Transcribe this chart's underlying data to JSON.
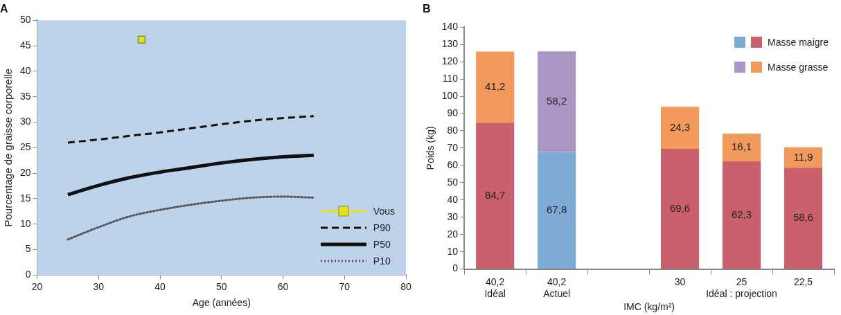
{
  "chart_data": [
    {
      "type": "line",
      "title": "A",
      "xlabel": "Age (années)",
      "ylabel": "Pourcentage de graisse corporelle",
      "xlim": [
        20,
        80
      ],
      "xticks": [
        20,
        30,
        40,
        50,
        60,
        70,
        80
      ],
      "ylim": [
        0,
        50
      ],
      "yticks": [
        0,
        5,
        10,
        15,
        20,
        25,
        30,
        35,
        40,
        45,
        50
      ],
      "grid": false,
      "legend": "bottom right",
      "series": [
        {
          "name": "Vous",
          "type": "scatter",
          "color": "#e2e21c",
          "marker": "square",
          "x": [
            37
          ],
          "values": [
            46.2
          ]
        },
        {
          "name": "P90",
          "type": "line",
          "color": "#111111",
          "marker": "none",
          "line_style": "dashed",
          "x": [
            25,
            30,
            35,
            40,
            45,
            50,
            55,
            60,
            65
          ],
          "values": [
            26,
            26.6,
            27.3,
            28,
            28.8,
            29.6,
            30.3,
            30.8,
            31.2
          ]
        },
        {
          "name": "P50",
          "type": "line",
          "color": "#111111",
          "marker": "none",
          "line_style": "solid",
          "x": [
            25,
            30,
            35,
            40,
            45,
            50,
            55,
            60,
            65
          ],
          "values": [
            15.8,
            17.6,
            19.1,
            20.2,
            21.1,
            22,
            22.7,
            23.2,
            23.5
          ]
        },
        {
          "name": "P10",
          "type": "line",
          "color": "#555555",
          "marker": "none",
          "line_style": "dotted",
          "x": [
            25,
            30,
            35,
            40,
            45,
            50,
            55,
            60,
            65
          ],
          "values": [
            7,
            9.4,
            11.5,
            12.8,
            13.8,
            14.6,
            15.2,
            15.4,
            15.2
          ]
        }
      ]
    },
    {
      "type": "bar",
      "title": "B",
      "xlabel": "IMC (kg/m²)",
      "ylabel": "Poids (kg)",
      "stacked": true,
      "categories": [
        "40,2\nIdéal",
        "40,2\nActuel",
        null,
        "30",
        "25\nIdéal : projection",
        "22,5"
      ],
      "ylim": [
        0,
        140
      ],
      "yticks": [
        0,
        10,
        20,
        30,
        40,
        50,
        60,
        70,
        80,
        90,
        100,
        110,
        120,
        130,
        140
      ],
      "grid": false,
      "legend": "top right",
      "series": [
        {
          "name": "Masse maigre",
          "colors": [
            "#c9606b",
            "#80aad6",
            null,
            "#c9606b",
            "#c9606b",
            "#c9606b"
          ],
          "values": [
            84.7,
            67.8,
            null,
            69.6,
            62.3,
            58.6
          ],
          "value_labels": [
            "84,7",
            "67,8",
            null,
            "69,6",
            "62,3",
            "58,6"
          ]
        },
        {
          "name": "Masse grasse",
          "colors": [
            "#f29a5c",
            "#ab97c6",
            null,
            "#f29a5c",
            "#f29a5c",
            "#f29a5c"
          ],
          "values": [
            41.2,
            58.2,
            null,
            24.3,
            16.1,
            11.9
          ],
          "value_labels": [
            "41,2",
            "58,2",
            null,
            "24,3",
            "16,1",
            "11,9"
          ]
        }
      ]
    }
  ]
}
